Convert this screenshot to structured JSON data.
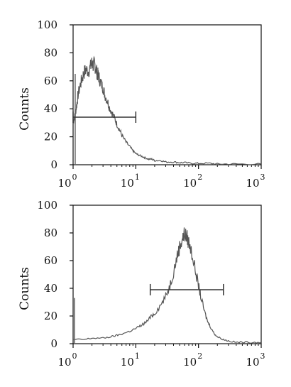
{
  "chart_data": [
    {
      "type": "line",
      "xscale": "log",
      "xlim": [
        1,
        1000
      ],
      "ylim": [
        0,
        100
      ],
      "ylabel": "Counts",
      "xticks": [
        {
          "value": 1,
          "base": "10",
          "exp": "0"
        },
        {
          "value": 10,
          "base": "10",
          "exp": "1"
        },
        {
          "value": 100,
          "base": "10",
          "exp": "2"
        },
        {
          "value": 1000,
          "base": "10",
          "exp": "3"
        }
      ],
      "yticks": [
        "0",
        "20",
        "40",
        "60",
        "80",
        "100"
      ],
      "series": [
        {
          "x": [
            1.0,
            1.05,
            1.1,
            1.15,
            1.2,
            1.3,
            1.4,
            1.5,
            1.6,
            1.75,
            1.9,
            2.0,
            2.1,
            2.2,
            2.3,
            2.4,
            2.5,
            2.6,
            2.8,
            3.0,
            3.2,
            3.5,
            3.8,
            4.2,
            4.6,
            5.0,
            5.5,
            6.0,
            7.0,
            8.0,
            9.0,
            10.0,
            11.0,
            12.5,
            14.0,
            16.0,
            18.0,
            20.0,
            25.0,
            30.0,
            40.0,
            50.0,
            60.0,
            80.0,
            100.0,
            150.0,
            200.0,
            300.0,
            500.0,
            1000.0
          ],
          "values": [
            30,
            34,
            38,
            44,
            50,
            57,
            62,
            66,
            68,
            67,
            70,
            73,
            71,
            72,
            69,
            66,
            64,
            62,
            58,
            55,
            50,
            46,
            41,
            37,
            33,
            29,
            25,
            21,
            16,
            13,
            10,
            8,
            7,
            6,
            5,
            4,
            4,
            3,
            3,
            2,
            2,
            1.5,
            1.5,
            1,
            1,
            1,
            0.5,
            0.5,
            0.5,
            0.5
          ]
        }
      ],
      "marker": {
        "x_start": 1.0,
        "x_end": 10.0,
        "y": 34
      },
      "spikes": [
        {
          "x": 1.08,
          "y": 65
        }
      ]
    },
    {
      "type": "line",
      "xscale": "log",
      "xlim": [
        1,
        1000
      ],
      "ylim": [
        0,
        100
      ],
      "ylabel": "Counts",
      "xticks": [
        {
          "value": 1,
          "base": "10",
          "exp": "0"
        },
        {
          "value": 10,
          "base": "10",
          "exp": "1"
        },
        {
          "value": 100,
          "base": "10",
          "exp": "2"
        },
        {
          "value": 1000,
          "base": "10",
          "exp": "3"
        }
      ],
      "yticks": [
        "0",
        "20",
        "40",
        "60",
        "80",
        "100"
      ],
      "series": [
        {
          "x": [
            1.0,
            1.5,
            2.0,
            3.0,
            4.0,
            5.0,
            6.0,
            8.0,
            10.0,
            12.0,
            15.0,
            18.0,
            20.0,
            25.0,
            30.0,
            35.0,
            40.0,
            45.0,
            50.0,
            55.0,
            60.0,
            65.0,
            70.0,
            80.0,
            90.0,
            100.0,
            110.0,
            125.0,
            140.0,
            160.0,
            180.0,
            200.0,
            250.0,
            300.0,
            400.0,
            500.0,
            700.0,
            1000.0
          ],
          "values": [
            3,
            3,
            4,
            4,
            5,
            6,
            7,
            9,
            11,
            13,
            16,
            20,
            22,
            28,
            34,
            42,
            52,
            62,
            70,
            76,
            79,
            77,
            73,
            64,
            52,
            42,
            33,
            23,
            16,
            11,
            7,
            5,
            3,
            2,
            1,
            1,
            1,
            1
          ]
        }
      ],
      "marker": {
        "x_start": 17.0,
        "x_end": 250.0,
        "y": 39
      },
      "spikes": [
        {
          "x": 1.05,
          "y": 33
        }
      ]
    }
  ]
}
